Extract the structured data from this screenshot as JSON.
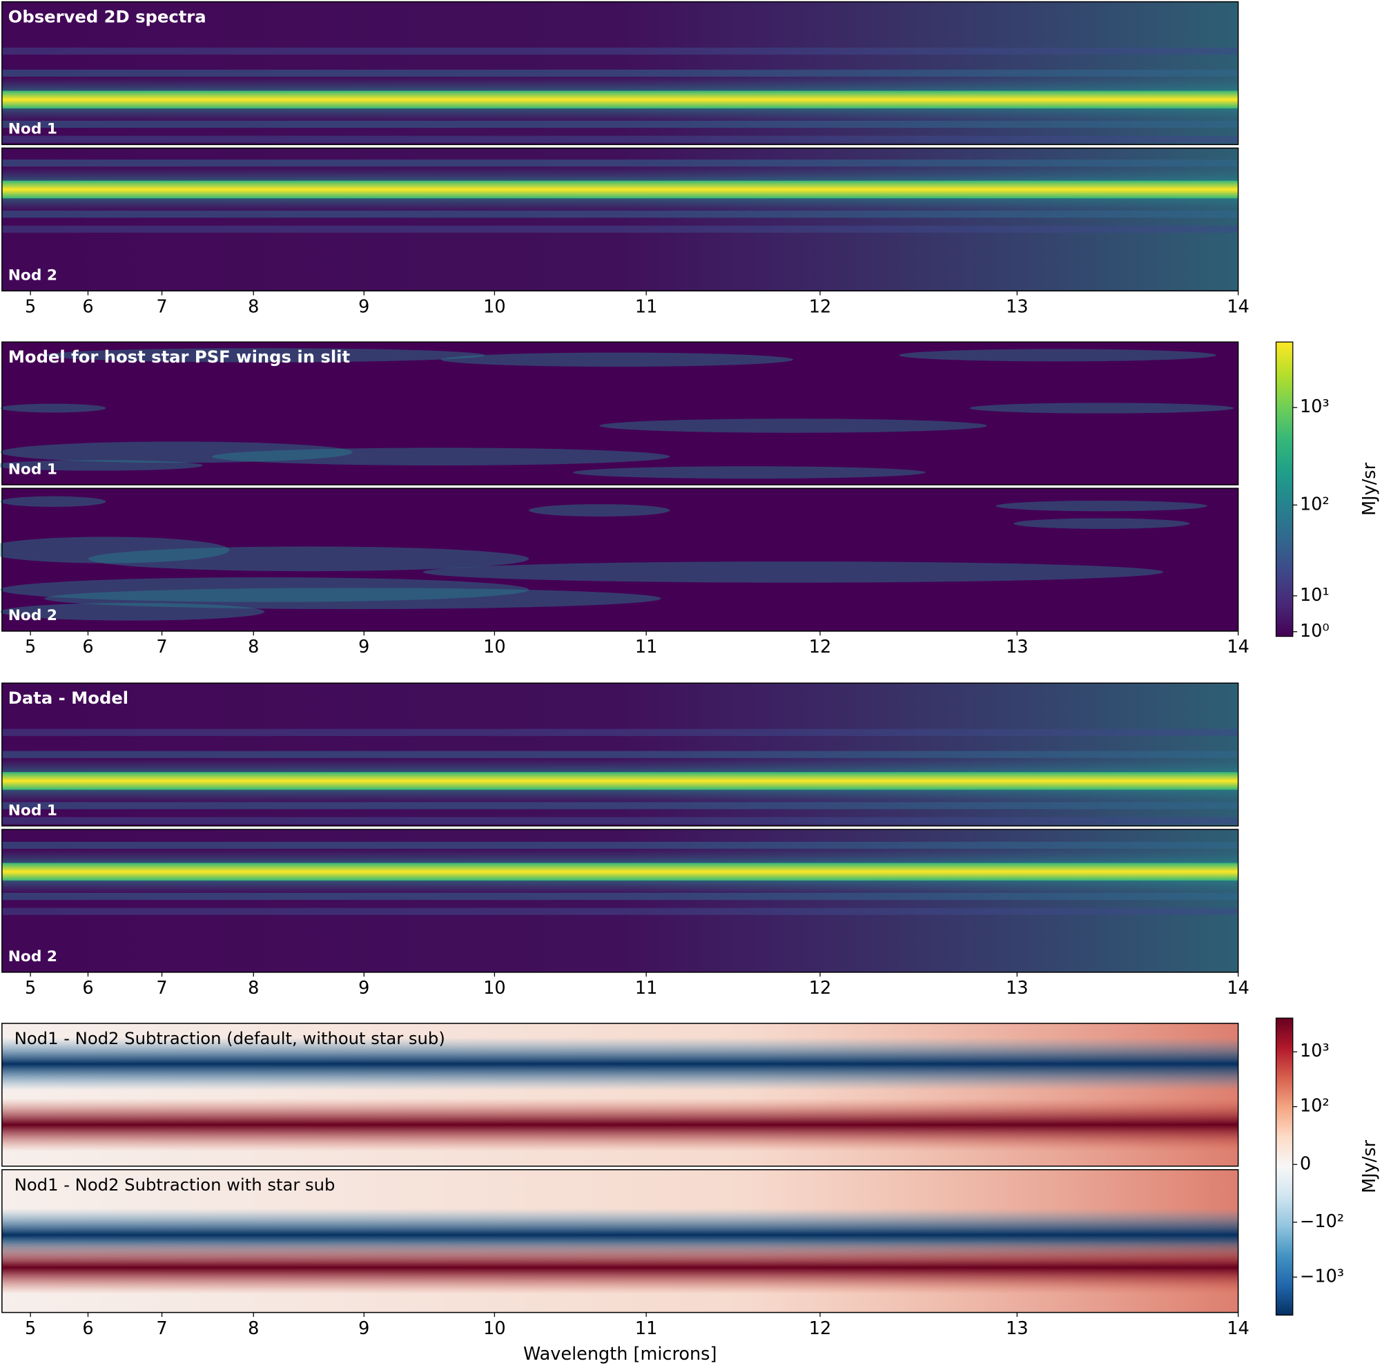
{
  "chart_data": [
    {
      "type": "heatmap",
      "title": "Observed 2D spectra",
      "panel_labels": [
        "Nod 1",
        "Nod 2"
      ],
      "colormap": "viridis",
      "xlim": [
        4.37,
        14
      ],
      "xscale": "power",
      "xscale_exponent": 2.5,
      "xticks": [
        5,
        6,
        7,
        8,
        9,
        10,
        11,
        12,
        13,
        14
      ]
    },
    {
      "type": "heatmap",
      "title": "Model for host star PSF wings in slit",
      "panel_labels": [
        "Nod 1",
        "Nod 2"
      ],
      "colormap": "viridis",
      "xlim": [
        4.37,
        14
      ],
      "xscale": "power",
      "xscale_exponent": 2.5,
      "xticks": [
        5,
        6,
        7,
        8,
        9,
        10,
        11,
        12,
        13,
        14
      ],
      "colorbar": {
        "label": "MJy/sr",
        "scale": "asinh",
        "linear_width": 9,
        "lim": [
          0,
          4700
        ],
        "ticks": [
          {
            "value": 1,
            "label": "10⁰"
          },
          {
            "value": 10,
            "label": "10¹"
          },
          {
            "value": 100,
            "label": "10²"
          },
          {
            "value": 1000,
            "label": "10³"
          }
        ]
      }
    },
    {
      "type": "heatmap",
      "title": "Data - Model",
      "panel_labels": [
        "Nod 1",
        "Nod 2"
      ],
      "colormap": "viridis",
      "xlim": [
        4.37,
        14
      ],
      "xscale": "power",
      "xscale_exponent": 2.5,
      "xticks": [
        5,
        6,
        7,
        8,
        9,
        10,
        11,
        12,
        13,
        14
      ]
    },
    {
      "type": "heatmap",
      "panel_titles": [
        "Nod1 - Nod2 Subtraction (default, without star sub)",
        "Nod1 - Nod2 Subtraction with star sub"
      ],
      "colormap": "RdBu_r",
      "xlim": [
        4.37,
        14
      ],
      "xscale": "power",
      "xscale_exponent": 2.5,
      "xticks": [
        5,
        6,
        7,
        8,
        9,
        10,
        11,
        12,
        13,
        14
      ],
      "xlabel": "Wavelength [microns]",
      "colorbar": {
        "label": "MJy/sr",
        "scale": "asinh",
        "linear_width": 18,
        "lim": [
          -4900,
          4100
        ],
        "ticks": [
          {
            "value": -1000,
            "label": "−10³"
          },
          {
            "value": -100,
            "label": "−10²"
          },
          0,
          {
            "value": 100,
            "label": "10²"
          },
          {
            "value": 1000,
            "label": "10³"
          }
        ]
      }
    }
  ]
}
